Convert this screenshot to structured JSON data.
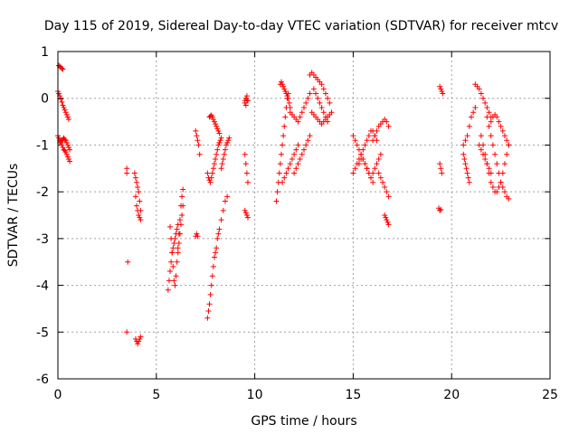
{
  "chart_data": {
    "type": "scatter",
    "title": "Day 115 of 2019, Sidereal Day-to-day VTEC variation (SDTVAR) for receiver mtcv",
    "xlabel": "GPS time / hours",
    "ylabel": "SDTVAR / TECUs",
    "xlim": [
      0,
      25
    ],
    "ylim": [
      -6,
      1
    ],
    "xticks": [
      0,
      5,
      10,
      15,
      20,
      25
    ],
    "yticks": [
      -6,
      -5,
      -4,
      -3,
      -2,
      -1,
      0,
      1
    ],
    "xtick_labels": [
      "0",
      "5",
      "10",
      "15",
      "20",
      "25"
    ],
    "ytick_labels": [
      "-6",
      "-5",
      "-4",
      "-3",
      "-2",
      "-1",
      "0",
      "1"
    ],
    "grid": true,
    "marker": "+",
    "color": "#ff0000",
    "series": [
      {
        "name": "seg1",
        "x": [
          0.05,
          0.1,
          0.15,
          0.2,
          0.25
        ],
        "y": [
          0.7,
          0.68,
          0.66,
          0.64,
          0.62
        ]
      },
      {
        "name": "seg2",
        "x": [
          0.0,
          0.05,
          0.1,
          0.15,
          0.2,
          0.25,
          0.3,
          0.35,
          0.4,
          0.45,
          0.5,
          0.55
        ],
        "y": [
          0.15,
          0.1,
          0.05,
          -0.02,
          -0.08,
          -0.15,
          -0.2,
          -0.25,
          -0.3,
          -0.35,
          -0.4,
          -0.45
        ]
      },
      {
        "name": "seg3",
        "x": [
          0.0,
          0.05,
          0.1,
          0.15,
          0.2,
          0.25,
          0.3,
          0.35,
          0.4,
          0.45,
          0.5,
          0.55,
          0.6
        ],
        "y": [
          -0.8,
          -0.85,
          -0.9,
          -0.95,
          -1.0,
          -1.05,
          -1.1,
          -1.12,
          -1.15,
          -1.2,
          -1.25,
          -1.3,
          -1.35
        ]
      },
      {
        "name": "seg4",
        "x": [
          0.1,
          0.15,
          0.2,
          0.25,
          0.3,
          0.35,
          0.4,
          0.45,
          0.5,
          0.55,
          0.6
        ],
        "y": [
          -0.95,
          -0.92,
          -0.9,
          -0.88,
          -0.85,
          -0.88,
          -0.9,
          -0.95,
          -1.0,
          -1.05,
          -1.1
        ]
      },
      {
        "name": "seg5",
        "x": [
          3.5,
          3.5,
          3.55,
          3.5
        ],
        "y": [
          -1.5,
          -1.6,
          -3.5,
          -5.0
        ]
      },
      {
        "name": "seg6",
        "x": [
          3.9,
          3.95,
          4.0,
          4.05,
          4.1,
          4.15,
          4.2,
          3.95,
          4.0,
          4.05,
          4.1,
          4.15,
          4.2
        ],
        "y": [
          -1.6,
          -1.7,
          -1.8,
          -1.9,
          -2.0,
          -2.2,
          -2.4,
          -2.1,
          -2.3,
          -2.4,
          -2.5,
          -2.55,
          -2.6
        ]
      },
      {
        "name": "seg7",
        "x": [
          3.95,
          4.0,
          4.05,
          4.1,
          4.15,
          4.2
        ],
        "y": [
          -5.15,
          -5.2,
          -5.25,
          -5.2,
          -5.15,
          -5.1
        ]
      },
      {
        "name": "seg8",
        "x": [
          5.6,
          5.65,
          5.7,
          5.75,
          5.8,
          5.85,
          5.9,
          5.95,
          6.0,
          6.05,
          6.1
        ],
        "y": [
          -4.1,
          -3.9,
          -3.7,
          -3.5,
          -3.3,
          -3.2,
          -3.1,
          -3.0,
          -2.9,
          -2.8,
          -2.7
        ]
      },
      {
        "name": "seg9",
        "x": [
          5.7,
          5.75,
          5.8,
          5.85,
          5.9,
          5.95,
          6.0,
          6.05,
          6.1,
          6.15,
          6.2,
          6.25,
          6.3,
          6.35
        ],
        "y": [
          -2.75,
          -3.0,
          -3.3,
          -3.6,
          -3.9,
          -4.0,
          -3.8,
          -3.5,
          -3.2,
          -2.9,
          -2.6,
          -2.3,
          -2.1,
          -1.95
        ]
      },
      {
        "name": "seg10",
        "x": [
          6.1,
          6.15,
          6.2,
          6.25,
          6.3,
          6.35
        ],
        "y": [
          -3.3,
          -3.1,
          -2.9,
          -2.7,
          -2.5,
          -2.3
        ]
      },
      {
        "name": "seg11",
        "x": [
          7.0,
          7.05,
          7.1
        ],
        "y": [
          -2.95,
          -2.9,
          -2.95
        ]
      },
      {
        "name": "seg12",
        "x": [
          7.0,
          7.05,
          7.1,
          7.15,
          7.2
        ],
        "y": [
          -0.7,
          -0.8,
          -0.9,
          -1.0,
          -1.2
        ]
      },
      {
        "name": "seg13",
        "x": [
          7.6,
          7.65,
          7.7,
          7.75,
          7.8,
          7.85,
          7.9,
          7.95,
          8.0,
          8.05,
          8.1,
          8.15,
          8.2,
          8.3,
          8.4,
          8.5,
          8.6
        ],
        "y": [
          -4.7,
          -4.55,
          -4.4,
          -4.2,
          -4.0,
          -3.8,
          -3.6,
          -3.4,
          -3.3,
          -3.2,
          -3.0,
          -2.9,
          -2.8,
          -2.6,
          -2.4,
          -2.2,
          -2.1
        ]
      },
      {
        "name": "seg14",
        "x": [
          7.6,
          7.65,
          7.7,
          7.75,
          7.8,
          7.85,
          7.9,
          7.95,
          8.0,
          8.05,
          8.1,
          8.15,
          8.2,
          8.25,
          8.3
        ],
        "y": [
          -1.6,
          -1.7,
          -1.75,
          -1.8,
          -1.7,
          -1.6,
          -1.5,
          -1.4,
          -1.3,
          -1.2,
          -1.1,
          -1.0,
          -0.95,
          -0.9,
          -0.85
        ]
      },
      {
        "name": "seg15",
        "x": [
          7.7,
          7.75,
          7.8,
          7.85,
          7.9,
          7.95,
          8.0,
          8.05,
          8.1,
          8.15,
          8.2
        ],
        "y": [
          -0.4,
          -0.38,
          -0.36,
          -0.4,
          -0.45,
          -0.5,
          -0.55,
          -0.6,
          -0.65,
          -0.7,
          -0.75
        ]
      },
      {
        "name": "seg16",
        "x": [
          8.3,
          8.35,
          8.4,
          8.45,
          8.5,
          8.55,
          8.6,
          8.65,
          8.7
        ],
        "y": [
          -1.5,
          -1.4,
          -1.3,
          -1.2,
          -1.1,
          -1.0,
          -0.95,
          -0.9,
          -0.85
        ]
      },
      {
        "name": "seg17",
        "x": [
          9.5,
          9.55,
          9.6,
          9.65
        ],
        "y": [
          -2.4,
          -2.45,
          -2.5,
          -2.55
        ]
      },
      {
        "name": "seg18",
        "x": [
          9.5,
          9.55,
          9.6,
          9.65
        ],
        "y": [
          -1.2,
          -1.4,
          -1.6,
          -1.8
        ]
      },
      {
        "name": "seg19",
        "x": [
          9.5,
          9.55,
          9.6,
          9.65,
          9.5,
          9.55,
          9.6
        ],
        "y": [
          -0.05,
          -0.0,
          0.05,
          -0.05,
          -0.1,
          -0.15,
          -0.05
        ]
      },
      {
        "name": "seg20",
        "x": [
          11.1,
          11.15,
          11.2,
          11.25,
          11.3,
          11.35,
          11.4,
          11.45,
          11.5,
          11.55,
          11.6,
          11.65,
          11.7
        ],
        "y": [
          -2.2,
          -2.0,
          -1.8,
          -1.6,
          -1.4,
          -1.2,
          -1.0,
          -0.8,
          -0.6,
          -0.4,
          -0.2,
          0.0,
          0.1
        ]
      },
      {
        "name": "seg21",
        "x": [
          11.3,
          11.35,
          11.4,
          11.45,
          11.5,
          11.55,
          11.6,
          11.65,
          11.7,
          11.75,
          11.8
        ],
        "y": [
          0.3,
          0.35,
          0.3,
          0.25,
          0.2,
          0.15,
          0.1,
          0.05,
          0.0,
          -0.1,
          -0.2
        ]
      },
      {
        "name": "seg22",
        "x": [
          11.4,
          11.5,
          11.6,
          11.7,
          11.8,
          11.9,
          12.0,
          12.1,
          12.2
        ],
        "y": [
          -1.8,
          -1.7,
          -1.6,
          -1.5,
          -1.4,
          -1.3,
          -1.2,
          -1.1,
          -1.0
        ]
      },
      {
        "name": "seg23",
        "x": [
          11.8,
          11.9,
          12.0,
          12.1,
          12.2,
          12.3,
          12.4,
          12.5,
          12.6,
          12.7,
          12.8
        ],
        "y": [
          -0.3,
          -0.35,
          -0.4,
          -0.45,
          -0.5,
          -0.4,
          -0.3,
          -0.2,
          -0.1,
          0.0,
          0.1
        ]
      },
      {
        "name": "seg24",
        "x": [
          12.0,
          12.1,
          12.2,
          12.3,
          12.4,
          12.5,
          12.6,
          12.7,
          12.8
        ],
        "y": [
          -1.6,
          -1.5,
          -1.4,
          -1.3,
          -1.2,
          -1.1,
          -1.0,
          -0.9,
          -0.8
        ]
      },
      {
        "name": "seg25",
        "x": [
          12.8,
          12.9,
          13.0,
          13.1,
          13.2,
          13.3,
          13.4,
          13.5,
          13.6,
          13.7,
          13.8
        ],
        "y": [
          0.5,
          0.55,
          0.5,
          0.45,
          0.4,
          0.35,
          0.3,
          0.2,
          0.1,
          0.0,
          -0.1
        ]
      },
      {
        "name": "seg26",
        "x": [
          12.9,
          13.0,
          13.1,
          13.2,
          13.3,
          13.4,
          13.5,
          13.6,
          13.7,
          13.8,
          13.9
        ],
        "y": [
          -0.3,
          -0.35,
          -0.4,
          -0.45,
          -0.5,
          -0.55,
          -0.5,
          -0.45,
          -0.4,
          -0.35,
          -0.3
        ]
      },
      {
        "name": "seg27",
        "x": [
          13.0,
          13.1,
          13.2,
          13.3,
          13.4,
          13.5,
          13.6,
          13.7
        ],
        "y": [
          0.2,
          0.1,
          0.0,
          -0.1,
          -0.2,
          -0.3,
          -0.4,
          -0.5
        ]
      },
      {
        "name": "seg28",
        "x": [
          15.0,
          15.1,
          15.2,
          15.3,
          15.4,
          15.5,
          15.6,
          15.7,
          15.8,
          15.9,
          16.0
        ],
        "y": [
          -0.8,
          -0.9,
          -1.0,
          -1.1,
          -1.2,
          -1.3,
          -1.4,
          -1.5,
          -1.6,
          -1.7,
          -1.8
        ]
      },
      {
        "name": "seg29",
        "x": [
          15.0,
          15.1,
          15.2,
          15.3,
          15.4,
          15.5,
          15.6,
          15.7,
          15.8,
          15.9,
          16.0,
          16.1,
          16.2
        ],
        "y": [
          -1.6,
          -1.5,
          -1.4,
          -1.3,
          -1.2,
          -1.1,
          -1.0,
          -0.9,
          -0.8,
          -0.7,
          -0.7,
          -0.8,
          -0.9
        ]
      },
      {
        "name": "seg30",
        "x": [
          15.3,
          15.4,
          15.5,
          15.6,
          15.7,
          15.8,
          15.9,
          16.0,
          16.1,
          16.2,
          16.3,
          16.4
        ],
        "y": [
          -1.4,
          -1.3,
          -1.3,
          -1.4,
          -1.5,
          -1.6,
          -1.7,
          -1.6,
          -1.5,
          -1.4,
          -1.3,
          -1.2
        ]
      },
      {
        "name": "seg31",
        "x": [
          16.0,
          16.1,
          16.2,
          16.3,
          16.4,
          16.5,
          16.6,
          16.7,
          16.8
        ],
        "y": [
          -0.9,
          -0.8,
          -0.7,
          -0.6,
          -0.55,
          -0.5,
          -0.45,
          -0.5,
          -0.6
        ]
      },
      {
        "name": "seg32",
        "x": [
          16.3,
          16.4,
          16.5,
          16.6,
          16.7,
          16.8
        ],
        "y": [
          -1.6,
          -1.7,
          -1.8,
          -1.9,
          -2.0,
          -2.1
        ]
      },
      {
        "name": "seg33",
        "x": [
          16.6,
          16.65,
          16.7,
          16.75,
          16.8
        ],
        "y": [
          -2.5,
          -2.55,
          -2.6,
          -2.65,
          -2.7
        ]
      },
      {
        "name": "seg34",
        "x": [
          19.4,
          19.45,
          19.5,
          19.55
        ],
        "y": [
          0.25,
          0.2,
          0.15,
          0.1
        ]
      },
      {
        "name": "seg35",
        "x": [
          19.4,
          19.45,
          19.5
        ],
        "y": [
          -1.4,
          -1.5,
          -1.6
        ]
      },
      {
        "name": "seg36",
        "x": [
          19.35,
          19.4,
          19.45
        ],
        "y": [
          -2.35,
          -2.4,
          -2.38
        ]
      },
      {
        "name": "seg37",
        "x": [
          20.6,
          20.7,
          20.8,
          20.9,
          21.0,
          21.1,
          21.2
        ],
        "y": [
          -1.0,
          -0.9,
          -0.8,
          -0.6,
          -0.4,
          -0.3,
          -0.2
        ]
      },
      {
        "name": "seg38",
        "x": [
          20.6,
          20.65,
          20.7,
          20.75,
          20.8,
          20.85,
          20.9
        ],
        "y": [
          -1.2,
          -1.3,
          -1.4,
          -1.5,
          -1.6,
          -1.7,
          -1.8
        ]
      },
      {
        "name": "seg39",
        "x": [
          21.2,
          21.3,
          21.4,
          21.5,
          21.6,
          21.7,
          21.8,
          21.9,
          22.0
        ],
        "y": [
          0.3,
          0.25,
          0.2,
          0.1,
          0.0,
          -0.1,
          -0.2,
          -0.3,
          -0.4
        ]
      },
      {
        "name": "seg40",
        "x": [
          21.5,
          21.6,
          21.7,
          21.8,
          21.9,
          22.0,
          22.1,
          22.2,
          22.3,
          22.4,
          22.5,
          22.6,
          22.7,
          22.8,
          22.9
        ],
        "y": [
          -0.8,
          -1.0,
          -1.2,
          -1.4,
          -1.6,
          -1.8,
          -1.9,
          -2.0,
          -2.0,
          -1.9,
          -1.8,
          -1.6,
          -1.4,
          -1.2,
          -1.0
        ]
      },
      {
        "name": "seg41",
        "x": [
          21.8,
          21.9,
          22.0,
          22.1,
          22.2,
          22.3,
          22.4,
          22.5,
          22.6,
          22.7,
          22.8,
          22.9
        ],
        "y": [
          -0.4,
          -0.6,
          -0.8,
          -1.0,
          -1.2,
          -1.4,
          -1.6,
          -1.8,
          -1.9,
          -2.0,
          -2.1,
          -2.15
        ]
      },
      {
        "name": "seg42",
        "x": [
          22.0,
          22.1,
          22.2,
          22.3,
          22.4,
          22.5,
          22.6,
          22.7,
          22.8,
          22.9
        ],
        "y": [
          -0.5,
          -0.4,
          -0.35,
          -0.4,
          -0.5,
          -0.6,
          -0.7,
          -0.8,
          -0.9,
          -1.0
        ]
      },
      {
        "name": "seg43",
        "x": [
          21.4,
          21.5,
          21.6,
          21.7,
          21.8,
          21.9,
          22.0
        ],
        "y": [
          -1.0,
          -1.1,
          -1.2,
          -1.3,
          -1.4,
          -1.5,
          -1.6
        ]
      }
    ]
  }
}
